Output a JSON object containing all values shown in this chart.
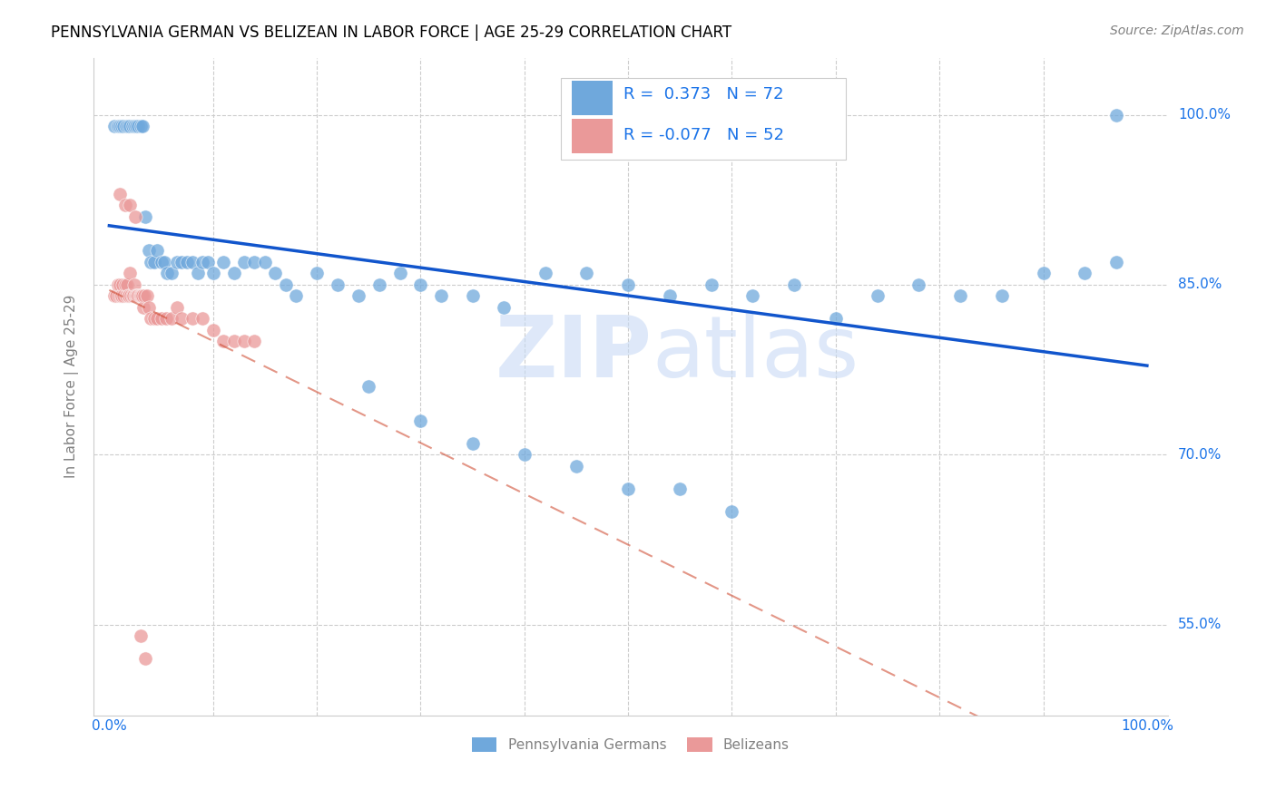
{
  "title": "PENNSYLVANIA GERMAN VS BELIZEAN IN LABOR FORCE | AGE 25-29 CORRELATION CHART",
  "source": "Source: ZipAtlas.com",
  "ylabel": "In Labor Force | Age 25-29",
  "legend_labels": [
    "Pennsylvania Germans",
    "Belizeans"
  ],
  "r_blue": 0.373,
  "n_blue": 72,
  "r_pink": -0.077,
  "n_pink": 52,
  "blue_color": "#6fa8dc",
  "pink_color": "#ea9999",
  "blue_line_color": "#1155cc",
  "pink_line_color": "#cc4125",
  "label_color": "#1a73e8",
  "text_color": "#222222",
  "grid_color": "#cccccc",
  "watermark_color": "#c8daf5",
  "blue_x": [
    0.005,
    0.008,
    0.01,
    0.012,
    0.014,
    0.016,
    0.018,
    0.02,
    0.022,
    0.024,
    0.026,
    0.028,
    0.03,
    0.032,
    0.035,
    0.038,
    0.04,
    0.043,
    0.046,
    0.05,
    0.053,
    0.056,
    0.06,
    0.065,
    0.07,
    0.075,
    0.08,
    0.085,
    0.09,
    0.095,
    0.1,
    0.11,
    0.12,
    0.13,
    0.14,
    0.15,
    0.16,
    0.17,
    0.18,
    0.2,
    0.22,
    0.24,
    0.26,
    0.28,
    0.3,
    0.32,
    0.35,
    0.38,
    0.42,
    0.46,
    0.5,
    0.54,
    0.58,
    0.62,
    0.66,
    0.7,
    0.74,
    0.78,
    0.82,
    0.86,
    0.9,
    0.94,
    0.97,
    0.25,
    0.3,
    0.35,
    0.4,
    0.45,
    0.5,
    0.55,
    0.6,
    0.97
  ],
  "blue_y": [
    0.99,
    0.99,
    0.99,
    0.99,
    0.99,
    0.99,
    0.99,
    0.99,
    0.99,
    0.99,
    0.99,
    0.99,
    0.99,
    0.99,
    0.91,
    0.88,
    0.87,
    0.87,
    0.88,
    0.87,
    0.87,
    0.86,
    0.86,
    0.87,
    0.87,
    0.87,
    0.87,
    0.86,
    0.87,
    0.87,
    0.86,
    0.87,
    0.86,
    0.87,
    0.87,
    0.87,
    0.86,
    0.85,
    0.84,
    0.86,
    0.85,
    0.84,
    0.85,
    0.86,
    0.85,
    0.84,
    0.84,
    0.83,
    0.86,
    0.86,
    0.85,
    0.84,
    0.85,
    0.84,
    0.85,
    0.82,
    0.84,
    0.85,
    0.84,
    0.84,
    0.86,
    0.86,
    0.87,
    0.76,
    0.73,
    0.71,
    0.7,
    0.69,
    0.67,
    0.67,
    0.65,
    1.0
  ],
  "pink_x": [
    0.005,
    0.007,
    0.008,
    0.009,
    0.01,
    0.011,
    0.012,
    0.013,
    0.014,
    0.015,
    0.016,
    0.017,
    0.018,
    0.019,
    0.02,
    0.021,
    0.022,
    0.023,
    0.024,
    0.025,
    0.026,
    0.027,
    0.028,
    0.029,
    0.03,
    0.031,
    0.032,
    0.033,
    0.034,
    0.036,
    0.038,
    0.04,
    0.043,
    0.046,
    0.05,
    0.055,
    0.06,
    0.065,
    0.07,
    0.08,
    0.09,
    0.1,
    0.11,
    0.12,
    0.13,
    0.14,
    0.01,
    0.015,
    0.02,
    0.025,
    0.03,
    0.035
  ],
  "pink_y": [
    0.84,
    0.84,
    0.85,
    0.84,
    0.85,
    0.84,
    0.84,
    0.85,
    0.84,
    0.85,
    0.84,
    0.85,
    0.84,
    0.84,
    0.86,
    0.84,
    0.84,
    0.84,
    0.85,
    0.84,
    0.84,
    0.84,
    0.84,
    0.84,
    0.84,
    0.84,
    0.84,
    0.83,
    0.84,
    0.84,
    0.83,
    0.82,
    0.82,
    0.82,
    0.82,
    0.82,
    0.82,
    0.83,
    0.82,
    0.82,
    0.82,
    0.81,
    0.8,
    0.8,
    0.8,
    0.8,
    0.93,
    0.92,
    0.92,
    0.91,
    0.54,
    0.52
  ]
}
